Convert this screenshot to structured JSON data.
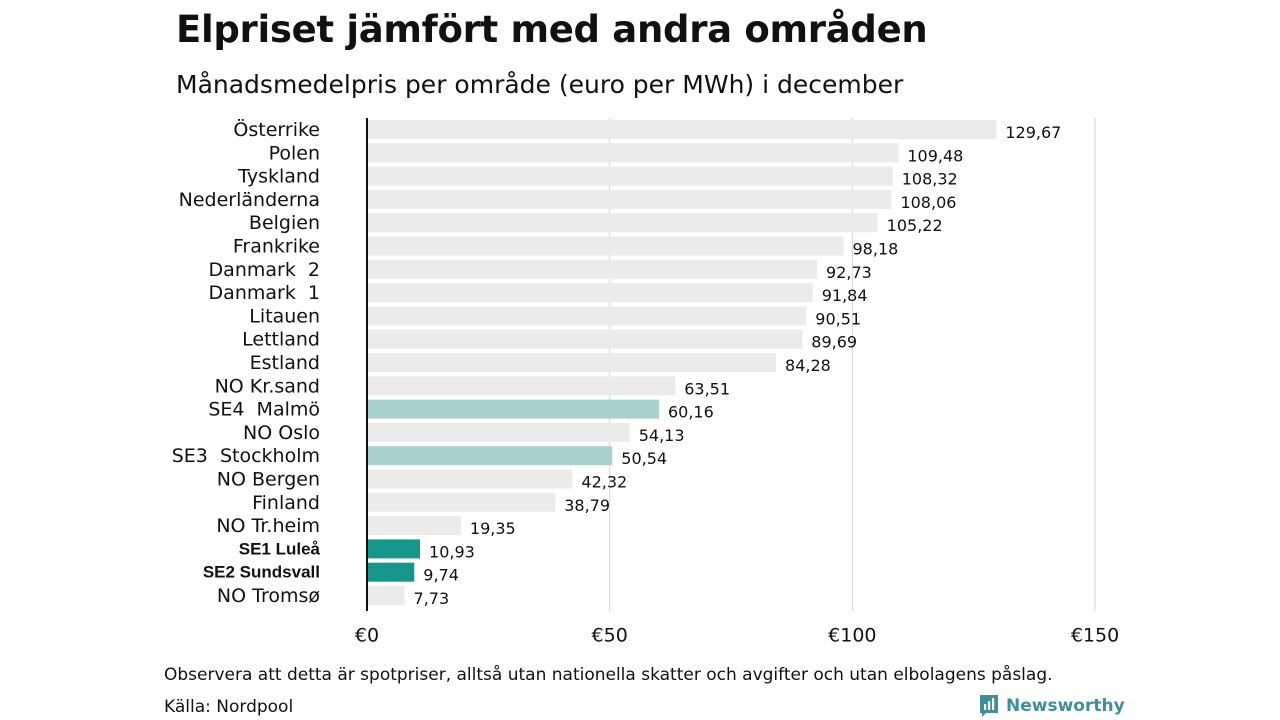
{
  "header": {
    "title": "Elpriset jämfört med andra områden",
    "subtitle": "Månadsmedelpris per område (euro per MWh) i december"
  },
  "footer": {
    "note": "Observera att detta är spotpriser, alltså utan nationella skatter och avgifter och utan elbolagens påslag.",
    "source": "Källa: Nordpool",
    "brand": "Newsworthy",
    "brand_icon": "newsworthy-logo-icon"
  },
  "colors": {
    "default_bar": "#ebebeb",
    "se_south_bar": "#a8d0cc",
    "se_north_bar": "#16968a",
    "gridline": "#d4d4d4",
    "axis": "#111111"
  },
  "chart_data": {
    "type": "bar",
    "orientation": "horizontal",
    "xlim": [
      0,
      150
    ],
    "grid": true,
    "x_ticks": [
      {
        "value": 0,
        "label": "€0"
      },
      {
        "value": 50,
        "label": "€50"
      },
      {
        "value": 100,
        "label": "€100"
      },
      {
        "value": 150,
        "label": "€150"
      }
    ],
    "bars": [
      {
        "label": "Österrike",
        "value": 129.67,
        "value_label": "129,67",
        "group": "default",
        "bold": false
      },
      {
        "label": "Polen",
        "value": 109.48,
        "value_label": "109,48",
        "group": "default",
        "bold": false
      },
      {
        "label": "Tyskland",
        "value": 108.32,
        "value_label": "108,32",
        "group": "default",
        "bold": false
      },
      {
        "label": "Nederländerna",
        "value": 108.06,
        "value_label": "108,06",
        "group": "default",
        "bold": false
      },
      {
        "label": "Belgien",
        "value": 105.22,
        "value_label": "105,22",
        "group": "default",
        "bold": false
      },
      {
        "label": "Frankrike",
        "value": 98.18,
        "value_label": "98,18",
        "group": "default",
        "bold": false
      },
      {
        "label": "Danmark  2",
        "value": 92.73,
        "value_label": "92,73",
        "group": "default",
        "bold": false
      },
      {
        "label": "Danmark  1",
        "value": 91.84,
        "value_label": "91,84",
        "group": "default",
        "bold": false
      },
      {
        "label": "Litauen",
        "value": 90.51,
        "value_label": "90,51",
        "group": "default",
        "bold": false
      },
      {
        "label": "Lettland",
        "value": 89.69,
        "value_label": "89,69",
        "group": "default",
        "bold": false
      },
      {
        "label": "Estland",
        "value": 84.28,
        "value_label": "84,28",
        "group": "default",
        "bold": false
      },
      {
        "label": "NO Kr.sand",
        "value": 63.51,
        "value_label": "63,51",
        "group": "default",
        "bold": false
      },
      {
        "label": "SE4  Malmö",
        "value": 60.16,
        "value_label": "60,16",
        "group": "se_south",
        "bold": false
      },
      {
        "label": "NO Oslo",
        "value": 54.13,
        "value_label": "54,13",
        "group": "default",
        "bold": false
      },
      {
        "label": "SE3  Stockholm",
        "value": 50.54,
        "value_label": "50,54",
        "group": "se_south",
        "bold": false
      },
      {
        "label": "NO Bergen",
        "value": 42.32,
        "value_label": "42,32",
        "group": "default",
        "bold": false
      },
      {
        "label": "Finland",
        "value": 38.79,
        "value_label": "38,79",
        "group": "default",
        "bold": false
      },
      {
        "label": "NO Tr.heim",
        "value": 19.35,
        "value_label": "19,35",
        "group": "default",
        "bold": false
      },
      {
        "label": "SE1 Luleå",
        "value": 10.93,
        "value_label": "10,93",
        "group": "se_north",
        "bold": true
      },
      {
        "label": "SE2 Sundsvall",
        "value": 9.74,
        "value_label": "9,74",
        "group": "se_north",
        "bold": true
      },
      {
        "label": "NO Tromsø",
        "value": 7.73,
        "value_label": "7,73",
        "group": "default",
        "bold": false
      }
    ]
  }
}
